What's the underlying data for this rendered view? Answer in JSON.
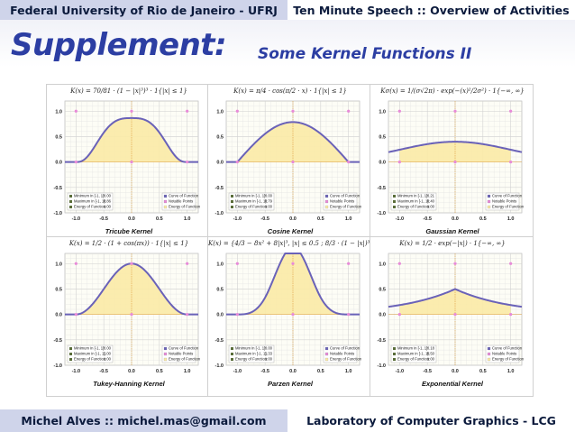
{
  "header": {
    "left": "Federal University of Rio de Janeiro - UFRJ",
    "right": "Ten Minute Speech :: Overview of Activities"
  },
  "slide": {
    "title": "Supplement:",
    "subtitle": "Some Kernel Functions II"
  },
  "footer": {
    "left": "Michel Alves :: michel.mas@gmail.com",
    "right": "Laboratory of Computer Graphics - LCG"
  },
  "colors": {
    "accent": "#2c3ea3",
    "curve": "#6a62b8",
    "fill": "#fbeaa6",
    "notable": "#e88ad8",
    "bar": "#cfd4ea"
  },
  "legend": {
    "left_labels": [
      "Minimum in [-1, 1]:",
      "Maximum in [-1, 1]:",
      "Energy of Function:"
    ],
    "right_labels": [
      "Curve of Function",
      "Notable Points",
      "Energy of Function"
    ]
  },
  "chart_data": [
    {
      "type": "area",
      "name": "tricube",
      "caption": "Tricube Kernel",
      "formula": "K(x) = 70/81 · (1 − |x|³)³ · 1{|x| ≤ 1}",
      "xlim": [
        -1.2,
        1.2
      ],
      "ylim": [
        -1.0,
        1.2
      ],
      "xticks": [
        "-1.0",
        "-0.5",
        "0.0",
        "0.5",
        "1.0"
      ],
      "yticks": [
        "1.0",
        "0.5",
        "0.0",
        "-0.5",
        "-1.0"
      ],
      "stats": [
        "0.00",
        "0.86",
        "1.00"
      ]
    },
    {
      "type": "area",
      "name": "cosine",
      "caption": "Cosine Kernel",
      "formula": "K(x) = π/4 · cos(π/2 · x) · 1{|x| ≤ 1}",
      "xlim": [
        -1.2,
        1.2
      ],
      "ylim": [
        -1.0,
        1.2
      ],
      "xticks": [
        "-1.0",
        "-0.5",
        "0.0",
        "0.5",
        "1.0"
      ],
      "yticks": [
        "1.0",
        "0.5",
        "0.0",
        "-0.5",
        "-1.0"
      ],
      "stats": [
        "0.00",
        "0.79",
        "1.00"
      ]
    },
    {
      "type": "area",
      "name": "gaussian",
      "caption": "Gaussian Kernel",
      "formula": "Kσ(x) = 1/(σ√2π) · exp(−(x)²/2σ²) · 1{−∞, ∞}",
      "xlim": [
        -1.2,
        1.2
      ],
      "ylim": [
        -1.0,
        1.2
      ],
      "xticks": [
        "-1.0",
        "-0.5",
        "0.0",
        "0.5",
        "1.0"
      ],
      "yticks": [
        "1.0",
        "0.5",
        "0.0",
        "-0.5",
        "-1.0"
      ],
      "stats": [
        "0.21",
        "0.40",
        "1.00"
      ]
    },
    {
      "type": "area",
      "name": "tukey",
      "caption": "Tukey-Hanning Kernel",
      "formula": "K(x) = 1/2 · (1 + cos(πx)) · 1{|x| ≤ 1}",
      "xlim": [
        -1.2,
        1.2
      ],
      "ylim": [
        -1.0,
        1.2
      ],
      "xticks": [
        "-1.0",
        "-0.5",
        "0.0",
        "0.5",
        "1.0"
      ],
      "yticks": [
        "1.0",
        "0.5",
        "0.0",
        "-0.5",
        "-1.0"
      ],
      "stats": [
        "0.00",
        "1.00",
        "1.00"
      ]
    },
    {
      "type": "area",
      "name": "parzen",
      "caption": "Parzen Kernel",
      "formula": "K(x) = {4/3 − 8x² + 8|x|³, |x| ≤ 0.5 ; 8/3 · (1 − |x|)³, 0.5 < |x| ≤ 1} · 1{|x| ≤ 1}",
      "xlim": [
        -1.2,
        1.2
      ],
      "ylim": [
        -1.0,
        1.2
      ],
      "xticks": [
        "-1.0",
        "-0.5",
        "0.0",
        "0.5",
        "1.0"
      ],
      "yticks": [
        "1.0",
        "0.5",
        "0.0",
        "-0.5",
        "-1.0"
      ],
      "stats": [
        "0.00",
        "1.33",
        "1.00"
      ]
    },
    {
      "type": "area",
      "name": "exponential",
      "caption": "Exponential Kernel",
      "formula": "K(x) = 1/2 · exp(−|x|) · 1{−∞, ∞}",
      "xlim": [
        -1.2,
        1.2
      ],
      "ylim": [
        -1.0,
        1.2
      ],
      "xticks": [
        "-1.0",
        "-0.5",
        "0.0",
        "0.5",
        "1.0"
      ],
      "yticks": [
        "1.0",
        "0.5",
        "0.0",
        "-0.5",
        "-1.0"
      ],
      "stats": [
        "0.18",
        "0.50",
        "1.00"
      ]
    }
  ]
}
